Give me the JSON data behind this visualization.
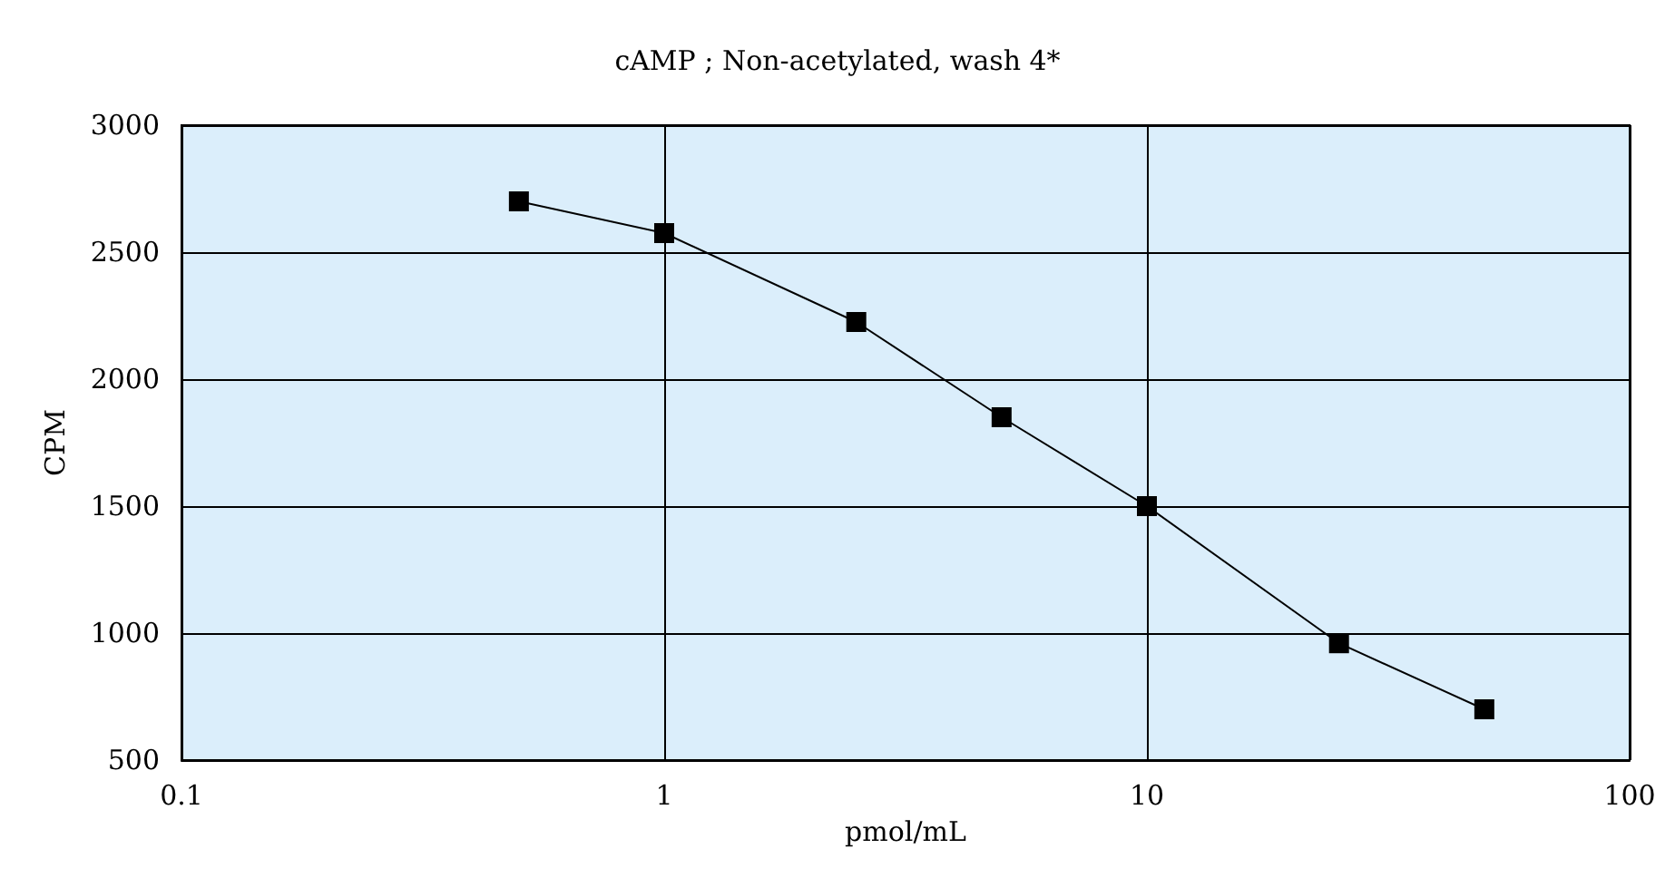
{
  "chart_data": {
    "type": "line",
    "title": "cAMP ; Non-acetylated, wash 4*",
    "xlabel": "pmol/mL",
    "ylabel": "CPM",
    "x": [
      0.5,
      1,
      2.5,
      5,
      10,
      25,
      50
    ],
    "series": [
      {
        "color": "#000000",
        "values": [
          2700,
          2575,
          2225,
          1850,
          1500,
          960,
          700
        ]
      }
    ],
    "xlim": [
      0.1,
      100
    ],
    "xticks": [
      0.1,
      1,
      10,
      100
    ],
    "ylim": [
      500,
      3000
    ],
    "yticks": [
      500,
      1000,
      1500,
      2000,
      2500,
      3000
    ],
    "log": "x",
    "grid": true,
    "marker": "square",
    "line_style": "solid"
  }
}
